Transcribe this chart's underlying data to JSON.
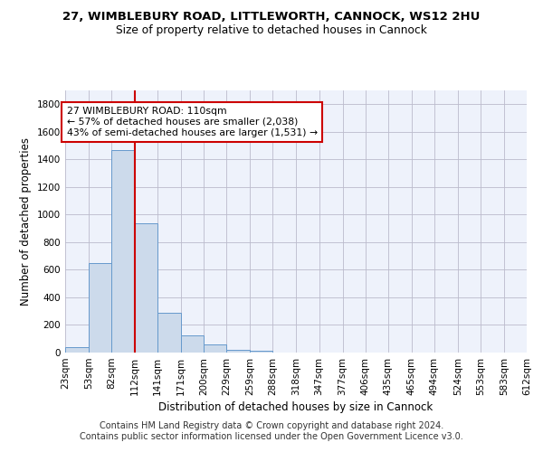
{
  "title": "27, WIMBLEBURY ROAD, LITTLEWORTH, CANNOCK, WS12 2HU",
  "subtitle": "Size of property relative to detached houses in Cannock",
  "xlabel": "Distribution of detached houses by size in Cannock",
  "ylabel": "Number of detached properties",
  "bar_color": "#ccdaeb",
  "bar_edge_color": "#6699cc",
  "grid_color": "#bbbbcc",
  "background_color": "#eef2fb",
  "vline_x": 112,
  "vline_color": "#cc0000",
  "annotation_text": "27 WIMBLEBURY ROAD: 110sqm\n← 57% of detached houses are smaller (2,038)\n43% of semi-detached houses are larger (1,531) →",
  "annotation_box_color": "#ffffff",
  "annotation_box_edge": "#cc0000",
  "bin_edges": [
    23,
    53,
    82,
    112,
    141,
    171,
    200,
    229,
    259,
    288,
    318,
    347,
    377,
    406,
    435,
    465,
    494,
    524,
    553,
    583,
    612
  ],
  "bar_heights": [
    40,
    650,
    1470,
    935,
    290,
    125,
    60,
    22,
    15,
    0,
    0,
    0,
    0,
    0,
    0,
    0,
    0,
    0,
    0,
    0
  ],
  "ylim": [
    0,
    1900
  ],
  "yticks": [
    0,
    200,
    400,
    600,
    800,
    1000,
    1200,
    1400,
    1600,
    1800
  ],
  "footer_text": "Contains HM Land Registry data © Crown copyright and database right 2024.\nContains public sector information licensed under the Open Government Licence v3.0.",
  "title_fontsize": 9.5,
  "subtitle_fontsize": 8.8,
  "xlabel_fontsize": 8.5,
  "ylabel_fontsize": 8.5,
  "tick_fontsize": 7.5,
  "footer_fontsize": 7.0,
  "annotation_fontsize": 7.8
}
